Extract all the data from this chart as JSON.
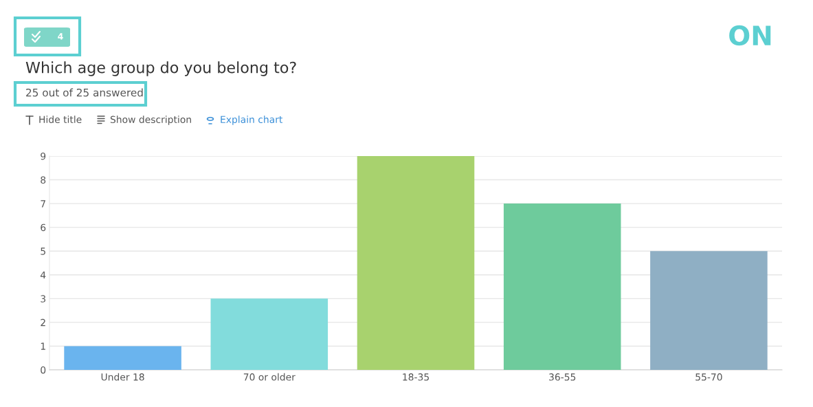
{
  "chart_data": {
    "type": "bar",
    "title": "Which age group do you belong to?",
    "subtitle": "25 out of 25 answered",
    "annotations": [
      "4",
      "ON",
      "Hide title",
      "Show description",
      "Explain chart"
    ],
    "categories": [
      "Under 18",
      "70 or older",
      "18-35",
      "36-55",
      "55-70"
    ],
    "values": [
      1,
      3,
      9,
      7,
      5
    ],
    "colors": [
      "#6ab4ee",
      "#82dcdc",
      "#a8d26e",
      "#6ecb9c",
      "#8fafc4"
    ],
    "ylim": [
      0,
      9
    ],
    "yticks": [
      0,
      1,
      2,
      3,
      4,
      5,
      6,
      7,
      8,
      9
    ],
    "grid": "y",
    "legend": false
  }
}
